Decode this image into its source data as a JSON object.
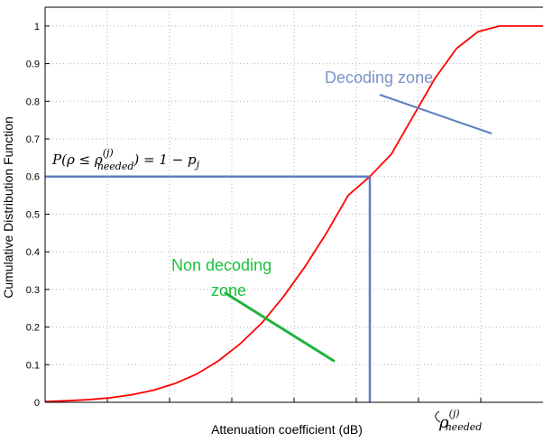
{
  "chart_data": {
    "type": "line",
    "title": "",
    "xlabel": "Attenuation coefficient (dB)",
    "ylabel": "Cumulative Distribution Function",
    "ylim": [
      0,
      1.05
    ],
    "yticks": [
      "0",
      "0.1",
      "0.2",
      "0.3",
      "0.4",
      "0.5",
      "0.6",
      "0.7",
      "0.8",
      "0.9",
      "1"
    ],
    "grid": true,
    "series": [
      {
        "y": [
          0.002,
          0.004,
          0.007,
          0.012,
          0.02,
          0.032,
          0.05,
          0.075,
          0.11,
          0.155,
          0.21,
          0.28,
          0.36,
          0.45,
          0.55,
          0.6,
          0.66,
          0.76,
          0.86,
          0.94,
          0.985,
          1.0,
          1.0,
          1.0
        ],
        "color": "#ff0000"
      }
    ],
    "threshold": {
      "y": 0.6,
      "expression": "P(ρ ≤ ρ",
      "superscript": "(j)",
      "subscript": "needed",
      "expression_tail": ") = 1 − p",
      "tail_subscript": "j"
    },
    "x_marker": {
      "symbol": "ρ",
      "superscript": "(j)",
      "subscript": "needed"
    },
    "annotations": [
      {
        "text": "Decoding zone",
        "color": "#7b93c9"
      },
      {
        "text": "Non decoding",
        "color": "#19c23c"
      },
      {
        "text": "zone",
        "color": "#19c23c"
      }
    ],
    "colors": {
      "curve": "#ff0000",
      "decoding": "#5b7fc0",
      "non_decoding": "#1fb33c",
      "grid": "#b0b0b0"
    }
  }
}
